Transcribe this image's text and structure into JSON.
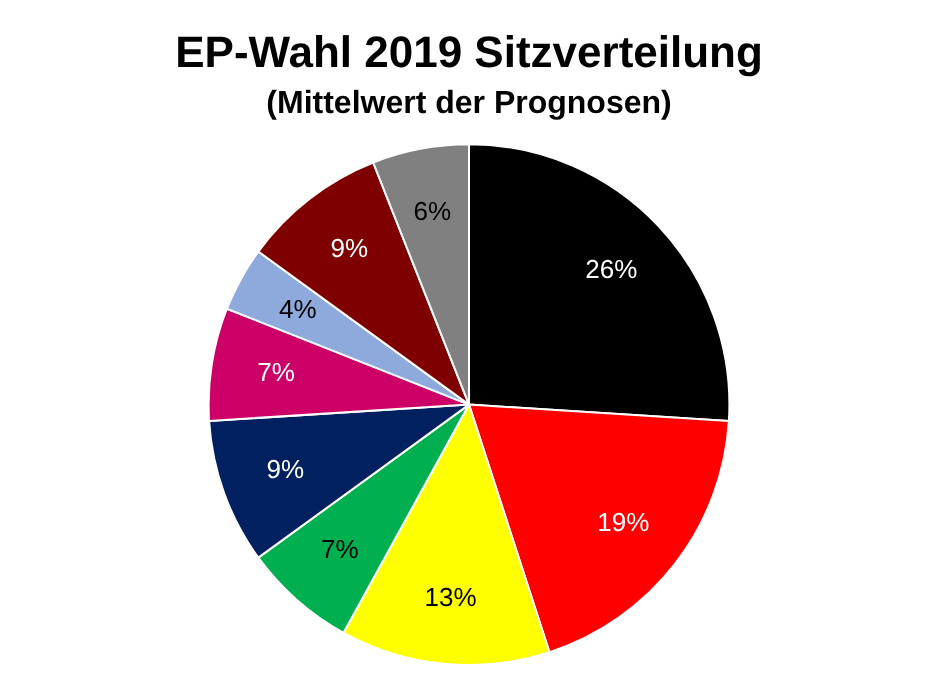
{
  "chart_data": {
    "type": "pie",
    "title": "EP-Wahl 2019 Sitzverteilung",
    "subtitle": "(Mittelwert der Prognosen)",
    "categories": [
      null,
      null,
      null,
      null,
      null,
      null,
      null,
      null,
      null
    ],
    "values": [
      26,
      19,
      13,
      7,
      9,
      7,
      4,
      9,
      6
    ],
    "value_labels": [
      "26%",
      "19%",
      "13%",
      "7%",
      "9%",
      "7%",
      "4%",
      "9%",
      "6%"
    ],
    "colors": [
      "#000000",
      "#ff0000",
      "#ffff00",
      "#00b050",
      "#002060",
      "#cc0066",
      "#8ea9db",
      "#7f0000",
      "#808080"
    ],
    "legend": false
  }
}
